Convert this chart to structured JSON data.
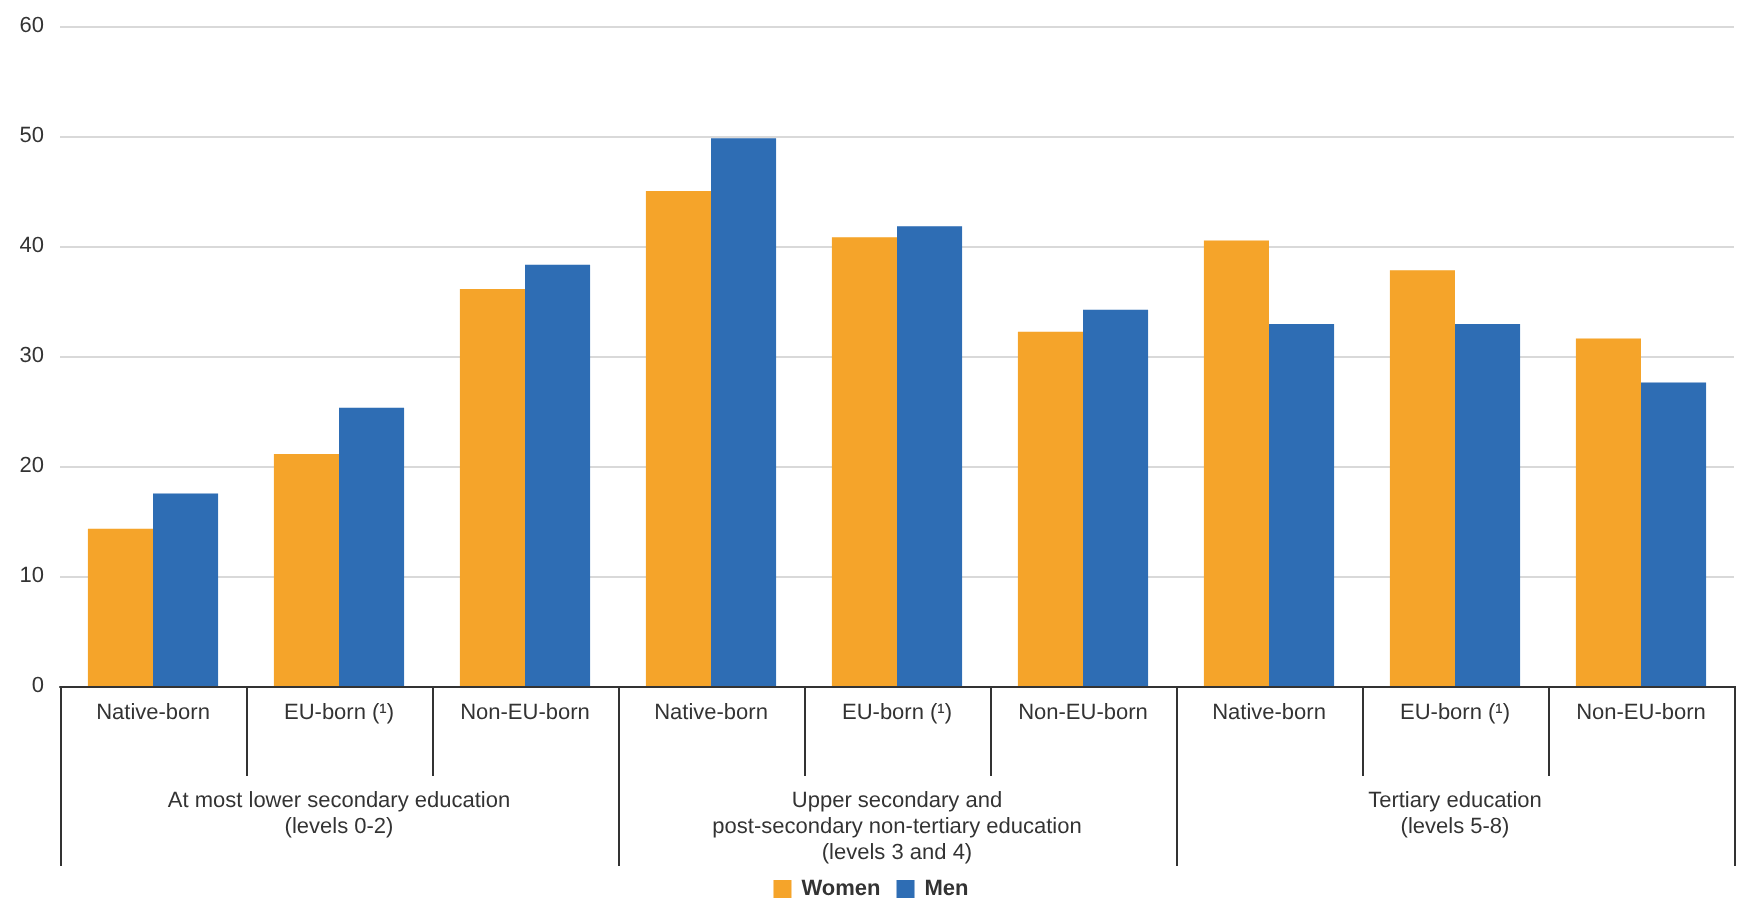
{
  "chart_data": {
    "type": "bar",
    "categories": [
      "Native-born",
      "EU-born (¹)",
      "Non-EU-born",
      "Native-born",
      "EU-born (¹)",
      "Non-EU-born",
      "Native-born",
      "EU-born (¹)",
      "Non-EU-born"
    ],
    "series": [
      {
        "name": "Women",
        "color": "#f5a42a",
        "values": [
          14.3,
          21.1,
          36.1,
          45.0,
          40.8,
          32.2,
          40.5,
          37.8,
          31.6
        ]
      },
      {
        "name": "Men",
        "color": "#2e6db4",
        "values": [
          17.5,
          25.3,
          38.3,
          49.8,
          41.8,
          34.2,
          32.9,
          32.9,
          27.6
        ]
      }
    ],
    "annotations": [
      "At most lower secondary education\n(levels 0-2)",
      "Upper secondary and\npost-secondary non-tertiary education\n(levels 3 and 4)",
      "Tertiary education\n(levels 5-8)"
    ],
    "ylim": [
      0,
      60
    ],
    "yticks": [
      0,
      10,
      20,
      30,
      40,
      50,
      60
    ],
    "grid": "y",
    "legend": "bottom"
  }
}
